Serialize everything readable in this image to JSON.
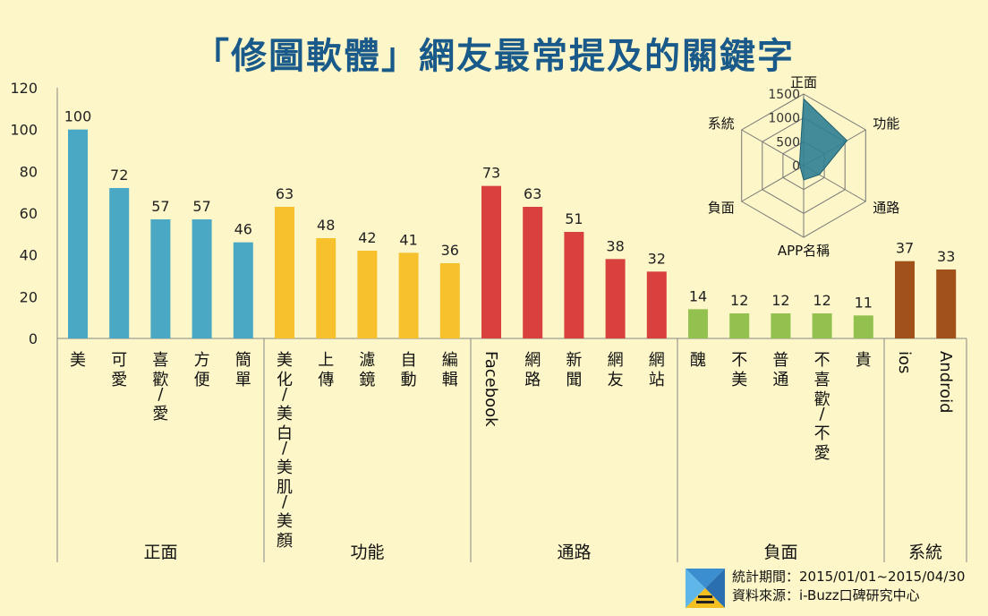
{
  "title": "「修圖軟體」網友最常提及的關鍵字",
  "colors": {
    "正面": "#4aa8c4",
    "功能": "#f7c12e",
    "通路": "#d8413e",
    "負面": "#92c14f",
    "系統": "#a0521a",
    "radar_fill": "#2f7f93"
  },
  "chart_data": [
    {
      "type": "bar",
      "ylim": [
        0,
        120
      ],
      "yticks": [
        0,
        20,
        40,
        60,
        80,
        100,
        120
      ],
      "categories": [
        "美",
        "可愛",
        "喜歡/愛",
        "方便",
        "簡單",
        "美化/美白/美肌/美顏",
        "上傳",
        "濾鏡",
        "自動",
        "編輯",
        "Facebook",
        "網路",
        "新聞",
        "網友",
        "網站",
        "醜",
        "不美",
        "普通",
        "不喜歡/不愛",
        "貴",
        "ios",
        "Android"
      ],
      "values": [
        100,
        72,
        57,
        57,
        46,
        63,
        48,
        42,
        41,
        36,
        73,
        63,
        51,
        38,
        32,
        14,
        12,
        12,
        12,
        11,
        37,
        33
      ],
      "groups": [
        {
          "name": "正面",
          "count": 5
        },
        {
          "name": "功能",
          "count": 5
        },
        {
          "name": "通路",
          "count": 5
        },
        {
          "name": "負面",
          "count": 5
        },
        {
          "name": "系統",
          "count": 2
        }
      ]
    },
    {
      "type": "radar",
      "axes": [
        "正面",
        "功能",
        "通路",
        "APP名稱",
        "負面",
        "系統"
      ],
      "values": [
        1400,
        1050,
        380,
        300,
        80,
        100
      ],
      "rlim": [
        0,
        1500
      ],
      "rticks": [
        0,
        500,
        1000,
        1500
      ]
    }
  ],
  "footer": {
    "line1": "統計期間：2015/01/01~2015/04/30",
    "line2": "資料來源：i-Buzz口碑研究中心"
  }
}
